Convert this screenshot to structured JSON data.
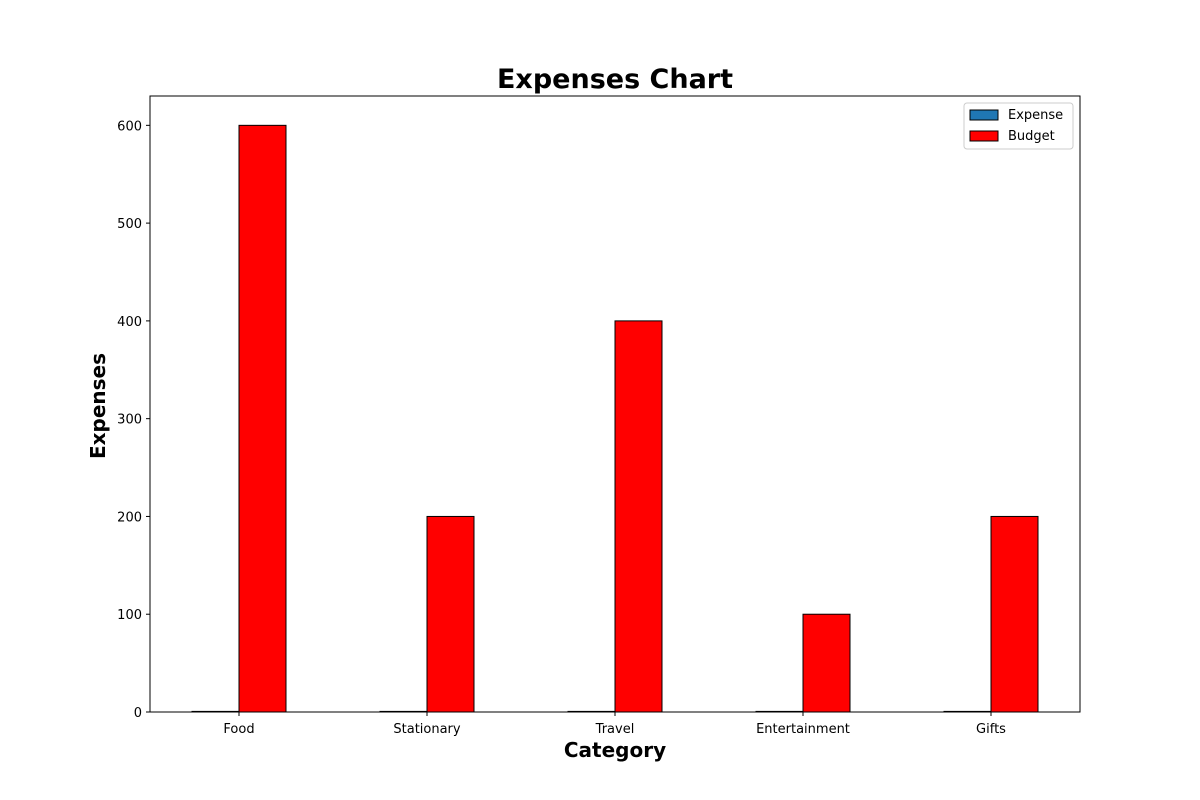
{
  "chart_data": {
    "type": "bar",
    "title": "Expenses Chart",
    "xlabel": "Category",
    "ylabel": "Expenses",
    "categories": [
      "Food",
      "Stationary",
      "Travel",
      "Entertainment",
      "Gifts"
    ],
    "series": [
      {
        "name": "Expense",
        "values": [
          0,
          0,
          0,
          0,
          0
        ],
        "color": "#1f77b4"
      },
      {
        "name": "Budget",
        "values": [
          600,
          200,
          400,
          100,
          200
        ],
        "color": "#ff0000"
      }
    ],
    "ylim": [
      0,
      630
    ],
    "yticks": [
      0,
      100,
      200,
      300,
      400,
      500,
      600
    ],
    "grid": false,
    "legend_position": "top-right",
    "bar_edge_color": "#000000"
  }
}
